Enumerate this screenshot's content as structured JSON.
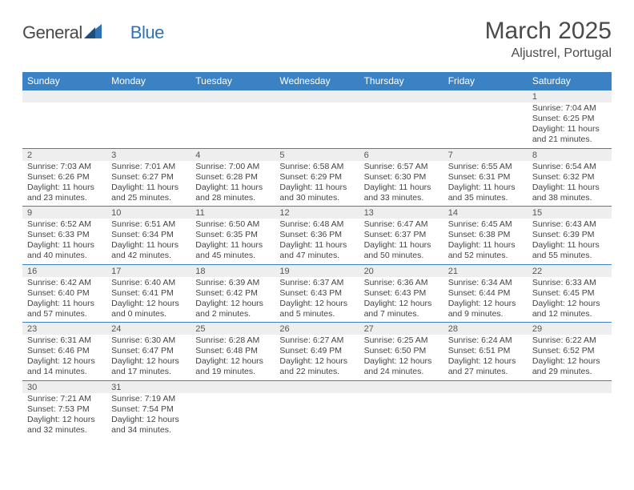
{
  "logo": {
    "part1": "General",
    "part2": "Blue"
  },
  "title": "March 2025",
  "location": "Aljustrel, Portugal",
  "colors": {
    "header_bg": "#3b82c4",
    "header_text": "#ffffff",
    "daynum_bg": "#eeeeee",
    "border": "#3b82c4",
    "text": "#444444",
    "logo_blue": "#2f72b5"
  },
  "daysOfWeek": [
    "Sunday",
    "Monday",
    "Tuesday",
    "Wednesday",
    "Thursday",
    "Friday",
    "Saturday"
  ],
  "weeks": [
    [
      null,
      null,
      null,
      null,
      null,
      null,
      {
        "n": "1",
        "sunrise": "7:04 AM",
        "sunset": "6:25 PM",
        "dlh": "11",
        "dlm": "21"
      }
    ],
    [
      {
        "n": "2",
        "sunrise": "7:03 AM",
        "sunset": "6:26 PM",
        "dlh": "11",
        "dlm": "23"
      },
      {
        "n": "3",
        "sunrise": "7:01 AM",
        "sunset": "6:27 PM",
        "dlh": "11",
        "dlm": "25"
      },
      {
        "n": "4",
        "sunrise": "7:00 AM",
        "sunset": "6:28 PM",
        "dlh": "11",
        "dlm": "28"
      },
      {
        "n": "5",
        "sunrise": "6:58 AM",
        "sunset": "6:29 PM",
        "dlh": "11",
        "dlm": "30"
      },
      {
        "n": "6",
        "sunrise": "6:57 AM",
        "sunset": "6:30 PM",
        "dlh": "11",
        "dlm": "33"
      },
      {
        "n": "7",
        "sunrise": "6:55 AM",
        "sunset": "6:31 PM",
        "dlh": "11",
        "dlm": "35"
      },
      {
        "n": "8",
        "sunrise": "6:54 AM",
        "sunset": "6:32 PM",
        "dlh": "11",
        "dlm": "38"
      }
    ],
    [
      {
        "n": "9",
        "sunrise": "6:52 AM",
        "sunset": "6:33 PM",
        "dlh": "11",
        "dlm": "40"
      },
      {
        "n": "10",
        "sunrise": "6:51 AM",
        "sunset": "6:34 PM",
        "dlh": "11",
        "dlm": "42"
      },
      {
        "n": "11",
        "sunrise": "6:50 AM",
        "sunset": "6:35 PM",
        "dlh": "11",
        "dlm": "45"
      },
      {
        "n": "12",
        "sunrise": "6:48 AM",
        "sunset": "6:36 PM",
        "dlh": "11",
        "dlm": "47"
      },
      {
        "n": "13",
        "sunrise": "6:47 AM",
        "sunset": "6:37 PM",
        "dlh": "11",
        "dlm": "50"
      },
      {
        "n": "14",
        "sunrise": "6:45 AM",
        "sunset": "6:38 PM",
        "dlh": "11",
        "dlm": "52"
      },
      {
        "n": "15",
        "sunrise": "6:43 AM",
        "sunset": "6:39 PM",
        "dlh": "11",
        "dlm": "55"
      }
    ],
    [
      {
        "n": "16",
        "sunrise": "6:42 AM",
        "sunset": "6:40 PM",
        "dlh": "11",
        "dlm": "57"
      },
      {
        "n": "17",
        "sunrise": "6:40 AM",
        "sunset": "6:41 PM",
        "dlh": "12",
        "dlm": "0"
      },
      {
        "n": "18",
        "sunrise": "6:39 AM",
        "sunset": "6:42 PM",
        "dlh": "12",
        "dlm": "2"
      },
      {
        "n": "19",
        "sunrise": "6:37 AM",
        "sunset": "6:43 PM",
        "dlh": "12",
        "dlm": "5"
      },
      {
        "n": "20",
        "sunrise": "6:36 AM",
        "sunset": "6:43 PM",
        "dlh": "12",
        "dlm": "7"
      },
      {
        "n": "21",
        "sunrise": "6:34 AM",
        "sunset": "6:44 PM",
        "dlh": "12",
        "dlm": "9"
      },
      {
        "n": "22",
        "sunrise": "6:33 AM",
        "sunset": "6:45 PM",
        "dlh": "12",
        "dlm": "12"
      }
    ],
    [
      {
        "n": "23",
        "sunrise": "6:31 AM",
        "sunset": "6:46 PM",
        "dlh": "12",
        "dlm": "14"
      },
      {
        "n": "24",
        "sunrise": "6:30 AM",
        "sunset": "6:47 PM",
        "dlh": "12",
        "dlm": "17"
      },
      {
        "n": "25",
        "sunrise": "6:28 AM",
        "sunset": "6:48 PM",
        "dlh": "12",
        "dlm": "19"
      },
      {
        "n": "26",
        "sunrise": "6:27 AM",
        "sunset": "6:49 PM",
        "dlh": "12",
        "dlm": "22"
      },
      {
        "n": "27",
        "sunrise": "6:25 AM",
        "sunset": "6:50 PM",
        "dlh": "12",
        "dlm": "24"
      },
      {
        "n": "28",
        "sunrise": "6:24 AM",
        "sunset": "6:51 PM",
        "dlh": "12",
        "dlm": "27"
      },
      {
        "n": "29",
        "sunrise": "6:22 AM",
        "sunset": "6:52 PM",
        "dlh": "12",
        "dlm": "29"
      }
    ],
    [
      {
        "n": "30",
        "sunrise": "7:21 AM",
        "sunset": "7:53 PM",
        "dlh": "12",
        "dlm": "32"
      },
      {
        "n": "31",
        "sunrise": "7:19 AM",
        "sunset": "7:54 PM",
        "dlh": "12",
        "dlm": "34"
      },
      null,
      null,
      null,
      null,
      null
    ]
  ],
  "labels": {
    "sunrise": "Sunrise:",
    "sunset": "Sunset:",
    "daylight_pre": "Daylight:",
    "hours_word": "hours",
    "and_word": "and",
    "minutes_word": "minutes."
  }
}
